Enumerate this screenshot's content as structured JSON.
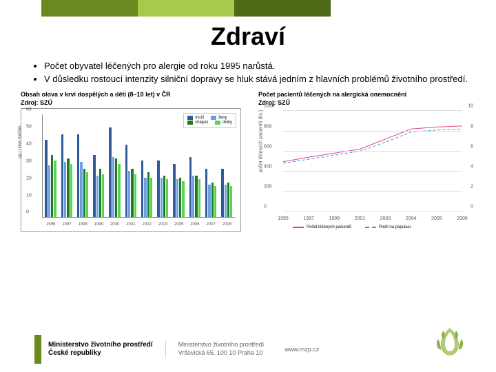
{
  "top_bands": {
    "colors": [
      "#6a8a1f",
      "#a8c94a",
      "#4d6b15"
    ]
  },
  "title": "Zdraví",
  "bullets": [
    "Počet obyvatel léčených pro alergie od roku 1995 narůstá.",
    "V důsledku rostoucí intenzity silniční dopravy se hluk stává jedním z hlavních problémů životního prostředí."
  ],
  "bar_chart": {
    "caption_line1": "Obsah olova v krvi dospělých a dětí (8–10 let) v ČR",
    "caption_line2": "Zdroj: SZÚ",
    "ylabel": "μg / l krve medián",
    "ylim": [
      0,
      60
    ],
    "ytick_step": 10,
    "years": [
      "1996",
      "1997",
      "1998",
      "1999",
      "2000",
      "2001",
      "2002",
      "2003",
      "2005",
      "2006",
      "2007",
      "2008"
    ],
    "series": [
      {
        "name": "muži",
        "color": "#2f5b9c",
        "values": [
          45,
          48,
          48,
          36,
          52,
          42,
          33,
          33,
          31,
          35,
          28,
          28
        ]
      },
      {
        "name": "ženy",
        "color": "#6aa0e0",
        "values": [
          30,
          32,
          32,
          24,
          35,
          27,
          23,
          23,
          22,
          24,
          19,
          19
        ]
      },
      {
        "name": "chlapci",
        "color": "#1f7a1f",
        "values": [
          36,
          34,
          28,
          28,
          34,
          28,
          26,
          24,
          23,
          24,
          20,
          20
        ]
      },
      {
        "name": "dívky",
        "color": "#5bd15b",
        "values": [
          33,
          31,
          26,
          25,
          31,
          25,
          23,
          22,
          21,
          22,
          18,
          18
        ]
      }
    ]
  },
  "line_chart": {
    "caption_line1": "Počet pacientů léčených na alergická onemocnění",
    "caption_line2": "Zdroj: SZÚ",
    "ylabel": "počet léčených pacientů (tis.)",
    "ylim_left": [
      0,
      1000
    ],
    "ytick_left_step": 200,
    "ylim_right": [
      0,
      10
    ],
    "ytick_right_step": 2,
    "years": [
      "1995",
      "1997",
      "1999",
      "2001",
      "2003",
      "2004",
      "2005",
      "2006"
    ],
    "series": [
      {
        "name": "Počet léčených pacientů",
        "color": "#d94a8c",
        "dash": "none",
        "values": [
          495,
          540,
          580,
          620,
          720,
          820,
          840,
          850
        ]
      },
      {
        "name": "Podíl na populaci",
        "color": "#4a90d9",
        "dash": "4,3",
        "values": [
          480,
          520,
          560,
          600,
          690,
          790,
          810,
          820
        ]
      }
    ]
  },
  "footer": {
    "band_color": "#6a8a1f",
    "ministry_line1": "Ministerstvo životního prostředí",
    "ministry_line2": "České republiky",
    "addr_line1": "Ministerstvo životního prostředí",
    "addr_line2": "Vršovická 65, 100 10 Praha 10",
    "website": "www.mzp.cz",
    "emblem_color": "#8bb33f"
  }
}
